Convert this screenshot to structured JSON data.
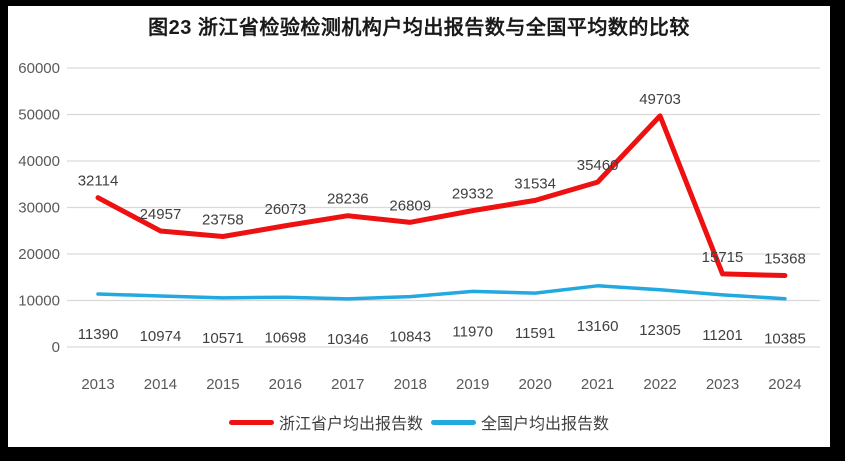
{
  "chart_data": {
    "type": "line",
    "title": "图23  浙江省检验检测机构户均出报告数与全国平均数的比较",
    "categories": [
      "2013",
      "2014",
      "2015",
      "2016",
      "2017",
      "2018",
      "2019",
      "2020",
      "2021",
      "2022",
      "2023",
      "2024"
    ],
    "series": [
      {
        "key": "zhejiang",
        "name": "浙江省户均出报告数",
        "color": "#ee1111",
        "label_position": "above",
        "values": [
          32114,
          24957,
          23758,
          26073,
          28236,
          26809,
          29332,
          31534,
          35460,
          49703,
          15715,
          15368
        ]
      },
      {
        "key": "national",
        "name": "全国户均出报告数",
        "color": "#22a9e0",
        "label_position": "below",
        "values": [
          11390,
          10974,
          10571,
          10698,
          10346,
          10843,
          11970,
          11591,
          13160,
          12305,
          11201,
          10385
        ]
      }
    ],
    "ylim": [
      0,
      60000
    ],
    "yticks": [
      0,
      10000,
      20000,
      30000,
      40000,
      50000,
      60000
    ],
    "grid": true,
    "grid_color": "#d9d9d9",
    "tick_color": "#595959",
    "label_color": "#404040",
    "legend_position": "bottom",
    "data_labels": true
  }
}
